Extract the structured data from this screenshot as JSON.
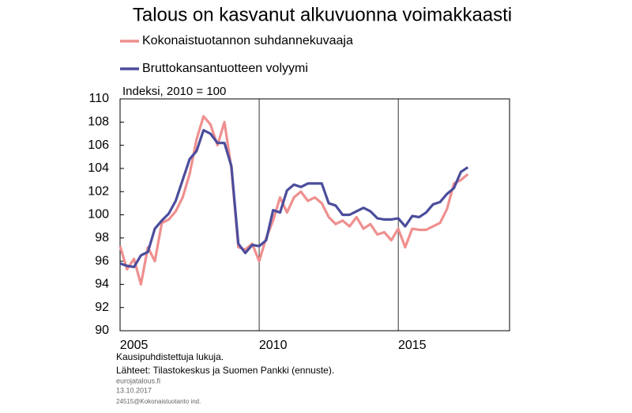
{
  "chart_data": {
    "type": "line",
    "title": "Talous on kasvanut alkuvuonna voimakkaasti",
    "y_label": "Indeksi, 2010 = 100",
    "x": [
      2005.0,
      2005.25,
      2005.5,
      2005.75,
      2006.0,
      2006.25,
      2006.5,
      2006.75,
      2007.0,
      2007.25,
      2007.5,
      2007.75,
      2008.0,
      2008.25,
      2008.5,
      2008.75,
      2009.0,
      2009.25,
      2009.5,
      2009.75,
      2010.0,
      2010.25,
      2010.5,
      2010.75,
      2011.0,
      2011.25,
      2011.5,
      2011.75,
      2012.0,
      2012.25,
      2012.5,
      2012.75,
      2013.0,
      2013.25,
      2013.5,
      2013.75,
      2014.0,
      2014.25,
      2014.5,
      2014.75,
      2015.0,
      2015.25,
      2015.5,
      2015.75,
      2016.0,
      2016.25,
      2016.5,
      2016.75,
      2017.0,
      2017.25,
      2017.5
    ],
    "series": [
      {
        "name": "Kokonaistuotannon suhdannekuvaaja",
        "color": "#ef8f8f",
        "values": [
          97.3,
          95.3,
          96.2,
          94.0,
          97.2,
          96.0,
          99.3,
          99.6,
          100.3,
          101.5,
          103.5,
          106.5,
          108.5,
          107.8,
          106.0,
          108.0,
          104.0,
          97.2,
          97.0,
          97.5,
          96.0,
          98.0,
          99.5,
          101.5,
          100.2,
          101.5,
          102.0,
          101.2,
          101.5,
          101.0,
          99.8,
          99.2,
          99.5,
          99.0,
          99.8,
          98.8,
          99.2,
          98.3,
          98.5,
          97.8,
          98.8,
          97.2,
          98.8,
          98.7,
          98.7,
          99.0,
          99.3,
          100.5,
          102.7,
          103.0,
          103.5
        ]
      },
      {
        "name": "Bruttokansantuotteen volyymi",
        "color": "#4b4d9c",
        "values": [
          95.8,
          95.6,
          95.5,
          96.5,
          96.8,
          98.8,
          99.5,
          100.1,
          101.2,
          103.0,
          104.8,
          105.5,
          107.3,
          107.0,
          106.2,
          106.2,
          104.2,
          97.5,
          96.7,
          97.4,
          97.3,
          97.8,
          100.4,
          100.2,
          102.1,
          102.6,
          102.4,
          102.7,
          102.7,
          102.7,
          101.0,
          100.8,
          100.0,
          100.0,
          100.3,
          100.6,
          100.3,
          99.7,
          99.6,
          99.6,
          99.7,
          99.0,
          99.9,
          99.8,
          100.2,
          100.9,
          101.1,
          101.8,
          102.3,
          103.7,
          104.1
        ]
      }
    ],
    "xlim": [
      2005,
      2019
    ],
    "xticks": [
      2005,
      2010,
      2015
    ],
    "ylim": [
      90,
      110
    ],
    "yticks": [
      90,
      92,
      94,
      96,
      98,
      100,
      102,
      104,
      106,
      108,
      110
    ],
    "grid": "x",
    "notes": [
      "Kausipuhdistettuja lukuja.",
      "Lähteet: Tilastokeskus ja Suomen Pankki (ennuste).",
      "eurojatalous.fi",
      "13.10.2017",
      "24515@Kokonaistuotanto ind."
    ]
  }
}
